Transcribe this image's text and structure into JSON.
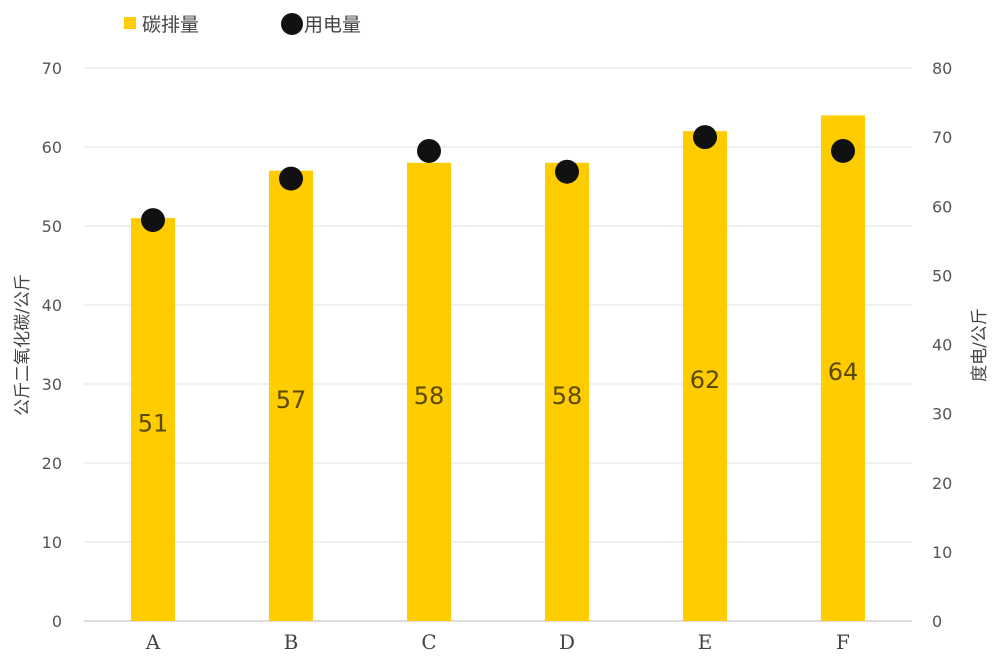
{
  "chart_data": {
    "type": "bar",
    "categories": [
      "A",
      "B",
      "C",
      "D",
      "E",
      "F"
    ],
    "series": [
      {
        "name": "碳排量",
        "type": "bar",
        "axis": "left",
        "values": [
          51,
          57,
          58,
          58,
          62,
          64
        ],
        "color": "#FFCC00"
      },
      {
        "name": "用电量",
        "type": "scatter",
        "axis": "right",
        "values": [
          58,
          64,
          68,
          65,
          70,
          68
        ],
        "color": "#111111"
      }
    ],
    "data_labels": [
      "51",
      "57",
      "58",
      "58",
      "62",
      "64"
    ],
    "ylabel": "公斤二氧化碳/公斤",
    "y2label": "度电/公斤",
    "ylim": [
      0,
      70
    ],
    "y2lim": [
      0,
      80
    ],
    "yticks": [
      0,
      10,
      20,
      30,
      40,
      50,
      60,
      70
    ],
    "y2ticks": [
      0,
      10,
      20,
      30,
      40,
      50,
      60,
      70,
      80
    ],
    "grid": true,
    "legend": "top-left"
  }
}
